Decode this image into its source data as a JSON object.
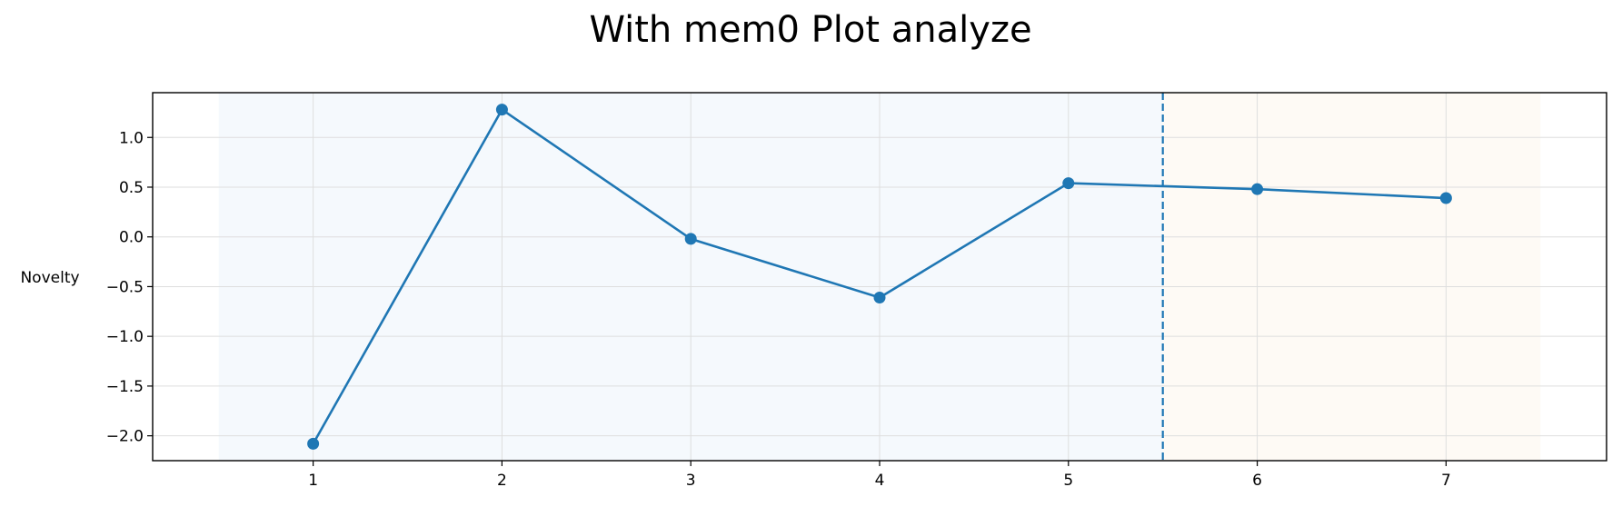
{
  "chart_data": {
    "type": "line",
    "title": "With mem0 Plot analyze",
    "xlabel": "",
    "ylabel": "Novelty",
    "x": [
      1,
      2,
      3,
      4,
      5,
      6,
      7
    ],
    "series": [
      {
        "values": [
          -2.08,
          1.28,
          -0.02,
          -0.61,
          0.54,
          0.48,
          0.39
        ]
      }
    ],
    "xlim": [
      0.15,
      7.85
    ],
    "ylim": [
      -2.25,
      1.45
    ],
    "xticks": [
      1,
      2,
      3,
      4,
      5,
      6,
      7
    ],
    "xtick_labels": [
      "1",
      "2",
      "3",
      "4",
      "5",
      "6",
      "7"
    ],
    "yticks": [
      -2.0,
      -1.5,
      -1.0,
      -0.5,
      0.0,
      0.5,
      1.0
    ],
    "ytick_labels": [
      "−2.0",
      "−1.5",
      "−1.0",
      "−0.5",
      "0.0",
      "0.5",
      "1.0"
    ],
    "grid": true,
    "shaded_regions": [
      {
        "x_start": 0.5,
        "x_end": 5.5,
        "color": "#f5f9fd"
      },
      {
        "x_start": 5.5,
        "x_end": 7.5,
        "color": "#fefaf5"
      }
    ],
    "vline": {
      "x": 5.5,
      "style": "dashed",
      "color": "#1f77b4"
    },
    "colors": {
      "line": "#1f77b4",
      "grid": "#dedede",
      "axes": "#000000"
    }
  }
}
